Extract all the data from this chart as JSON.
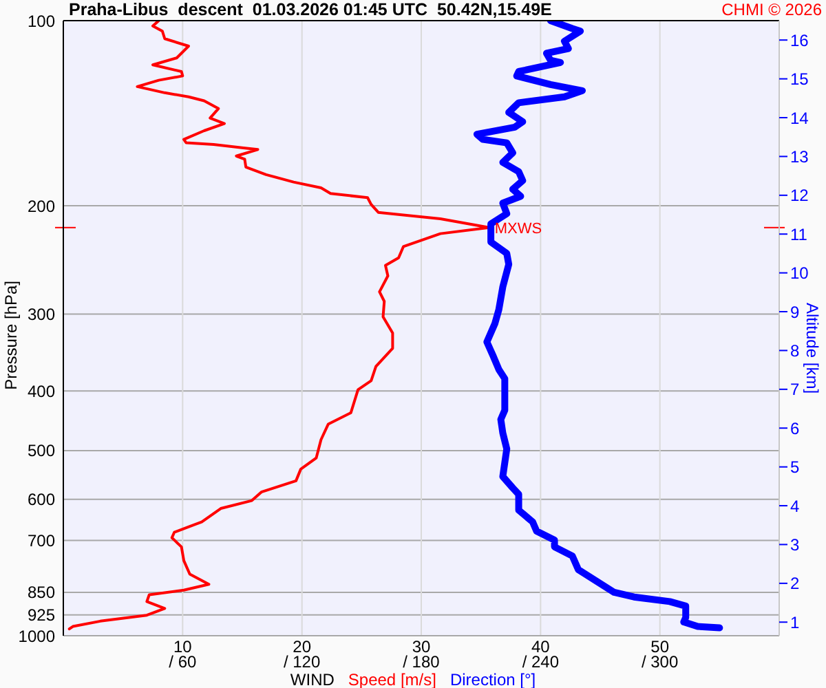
{
  "chart_data": {
    "type": "line",
    "orientation": "horizontal",
    "title": "Praha-Libus  descent  01.03.2026 01:45 UTC  50.42N,15.49E",
    "xlabel": "WIND",
    "ylabel": "Pressure [hPa]",
    "y2label": "Altitude [km]",
    "annotations": [
      "CHMI © 2026",
      {
        "text": "MXWS",
        "x": 35.7,
        "y": 217
      }
    ],
    "xlim": [
      0,
      60
    ],
    "xticks": [
      10,
      20,
      30,
      40,
      50
    ],
    "x2lim": [
      0,
      360
    ],
    "x2ticks": [
      {
        "value": 60,
        "label": "/ 60"
      },
      {
        "value": 120,
        "label": "/ 120"
      },
      {
        "value": 180,
        "label": "/ 180"
      },
      {
        "value": 240,
        "label": "/ 240"
      },
      {
        "value": 300,
        "label": "/ 300"
      }
    ],
    "ylim": [
      1000,
      100
    ],
    "yticks": [
      100,
      200,
      300,
      400,
      500,
      600,
      700,
      850,
      925,
      1000
    ],
    "log": "y",
    "y2lim": [
      0.65,
      16.5
    ],
    "y2ticks": [
      1,
      2,
      3,
      4,
      5,
      6,
      7,
      8,
      9,
      10,
      11,
      12,
      13,
      14,
      15,
      16
    ],
    "grid": true,
    "legend": "bottom",
    "line_style": "solid",
    "series": [
      {
        "name": "Speed [m/s]",
        "color": "#ff0000",
        "x": [
          100,
          102,
          104,
          107,
          110,
          115,
          118,
          121,
          123,
          125,
          128,
          131,
          133,
          135,
          139,
          144,
          147,
          151,
          156,
          158,
          159,
          161,
          162,
          166,
          168,
          173,
          178,
          183,
          187,
          191,
          194,
          199,
          205,
          207,
          210,
          217,
          222,
          233,
          243,
          250,
          260,
          276,
          286,
          303,
          322,
          341,
          365,
          385,
          398,
          434,
          453,
          480,
          514,
          536,
          560,
          584,
          603,
          621,
          653,
          679,
          693,
          717,
          755,
          794,
          825,
          843,
          858,
          880,
          903,
          926,
          947,
          966,
          975
        ],
        "values": [
          8.0,
          7.5,
          8.3,
          8.5,
          10.5,
          9.5,
          7.5,
          9.9,
          10.0,
          8.0,
          6.2,
          8.5,
          10.5,
          11.8,
          13.0,
          12.3,
          13.5,
          11.8,
          10.1,
          10.3,
          12.6,
          15.1,
          16.3,
          14.5,
          15.2,
          15.3,
          17.0,
          19.3,
          21.6,
          22.4,
          25.5,
          25.8,
          26.4,
          28.5,
          31.6,
          35.7,
          31.6,
          28.5,
          28.1,
          27.0,
          27.2,
          26.5,
          26.9,
          26.8,
          27.6,
          27.6,
          26.2,
          25.8,
          24.7,
          24.1,
          22.2,
          21.6,
          21.2,
          19.9,
          19.5,
          16.6,
          15.8,
          13.2,
          11.6,
          9.3,
          9.1,
          9.9,
          10.1,
          10.6,
          12.2,
          10.1,
          7.2,
          7.0,
          8.5,
          7.0,
          3.1,
          0.8,
          0.5
        ]
      },
      {
        "name": "Direction [°]",
        "color": "#0000ff",
        "axis": "x2",
        "x": [
          100,
          103,
          104,
          108,
          111,
          113,
          116,
          117,
          121,
          123,
          127,
          130,
          133,
          136,
          141,
          146,
          149,
          153,
          156,
          158,
          164,
          170,
          176,
          182,
          188,
          193,
          198,
          206,
          214,
          229,
          239,
          249,
          271,
          295,
          311,
          333,
          350,
          369,
          382,
          430,
          445,
          468,
          497,
          551,
          575,
          589,
          625,
          653,
          676,
          699,
          717,
          742,
          781,
          815,
          850,
          865,
          880,
          895,
          934,
          950,
          966,
          971
        ],
        "values": [
          245,
          256,
          260,
          252,
          254,
          243,
          245,
          250,
          229,
          228,
          245,
          261,
          252,
          229,
          224,
          231,
          227,
          208,
          211,
          223,
          226,
          221,
          229,
          231,
          226,
          230,
          221,
          223,
          215,
          215,
          223,
          224,
          221,
          219,
          217,
          213,
          216,
          219,
          222,
          222,
          220,
          221,
          223,
          221,
          226,
          229,
          229,
          236,
          238,
          247,
          247,
          256,
          259,
          268,
          277,
          287,
          305,
          313,
          313,
          312,
          319,
          330
        ]
      }
    ]
  }
}
